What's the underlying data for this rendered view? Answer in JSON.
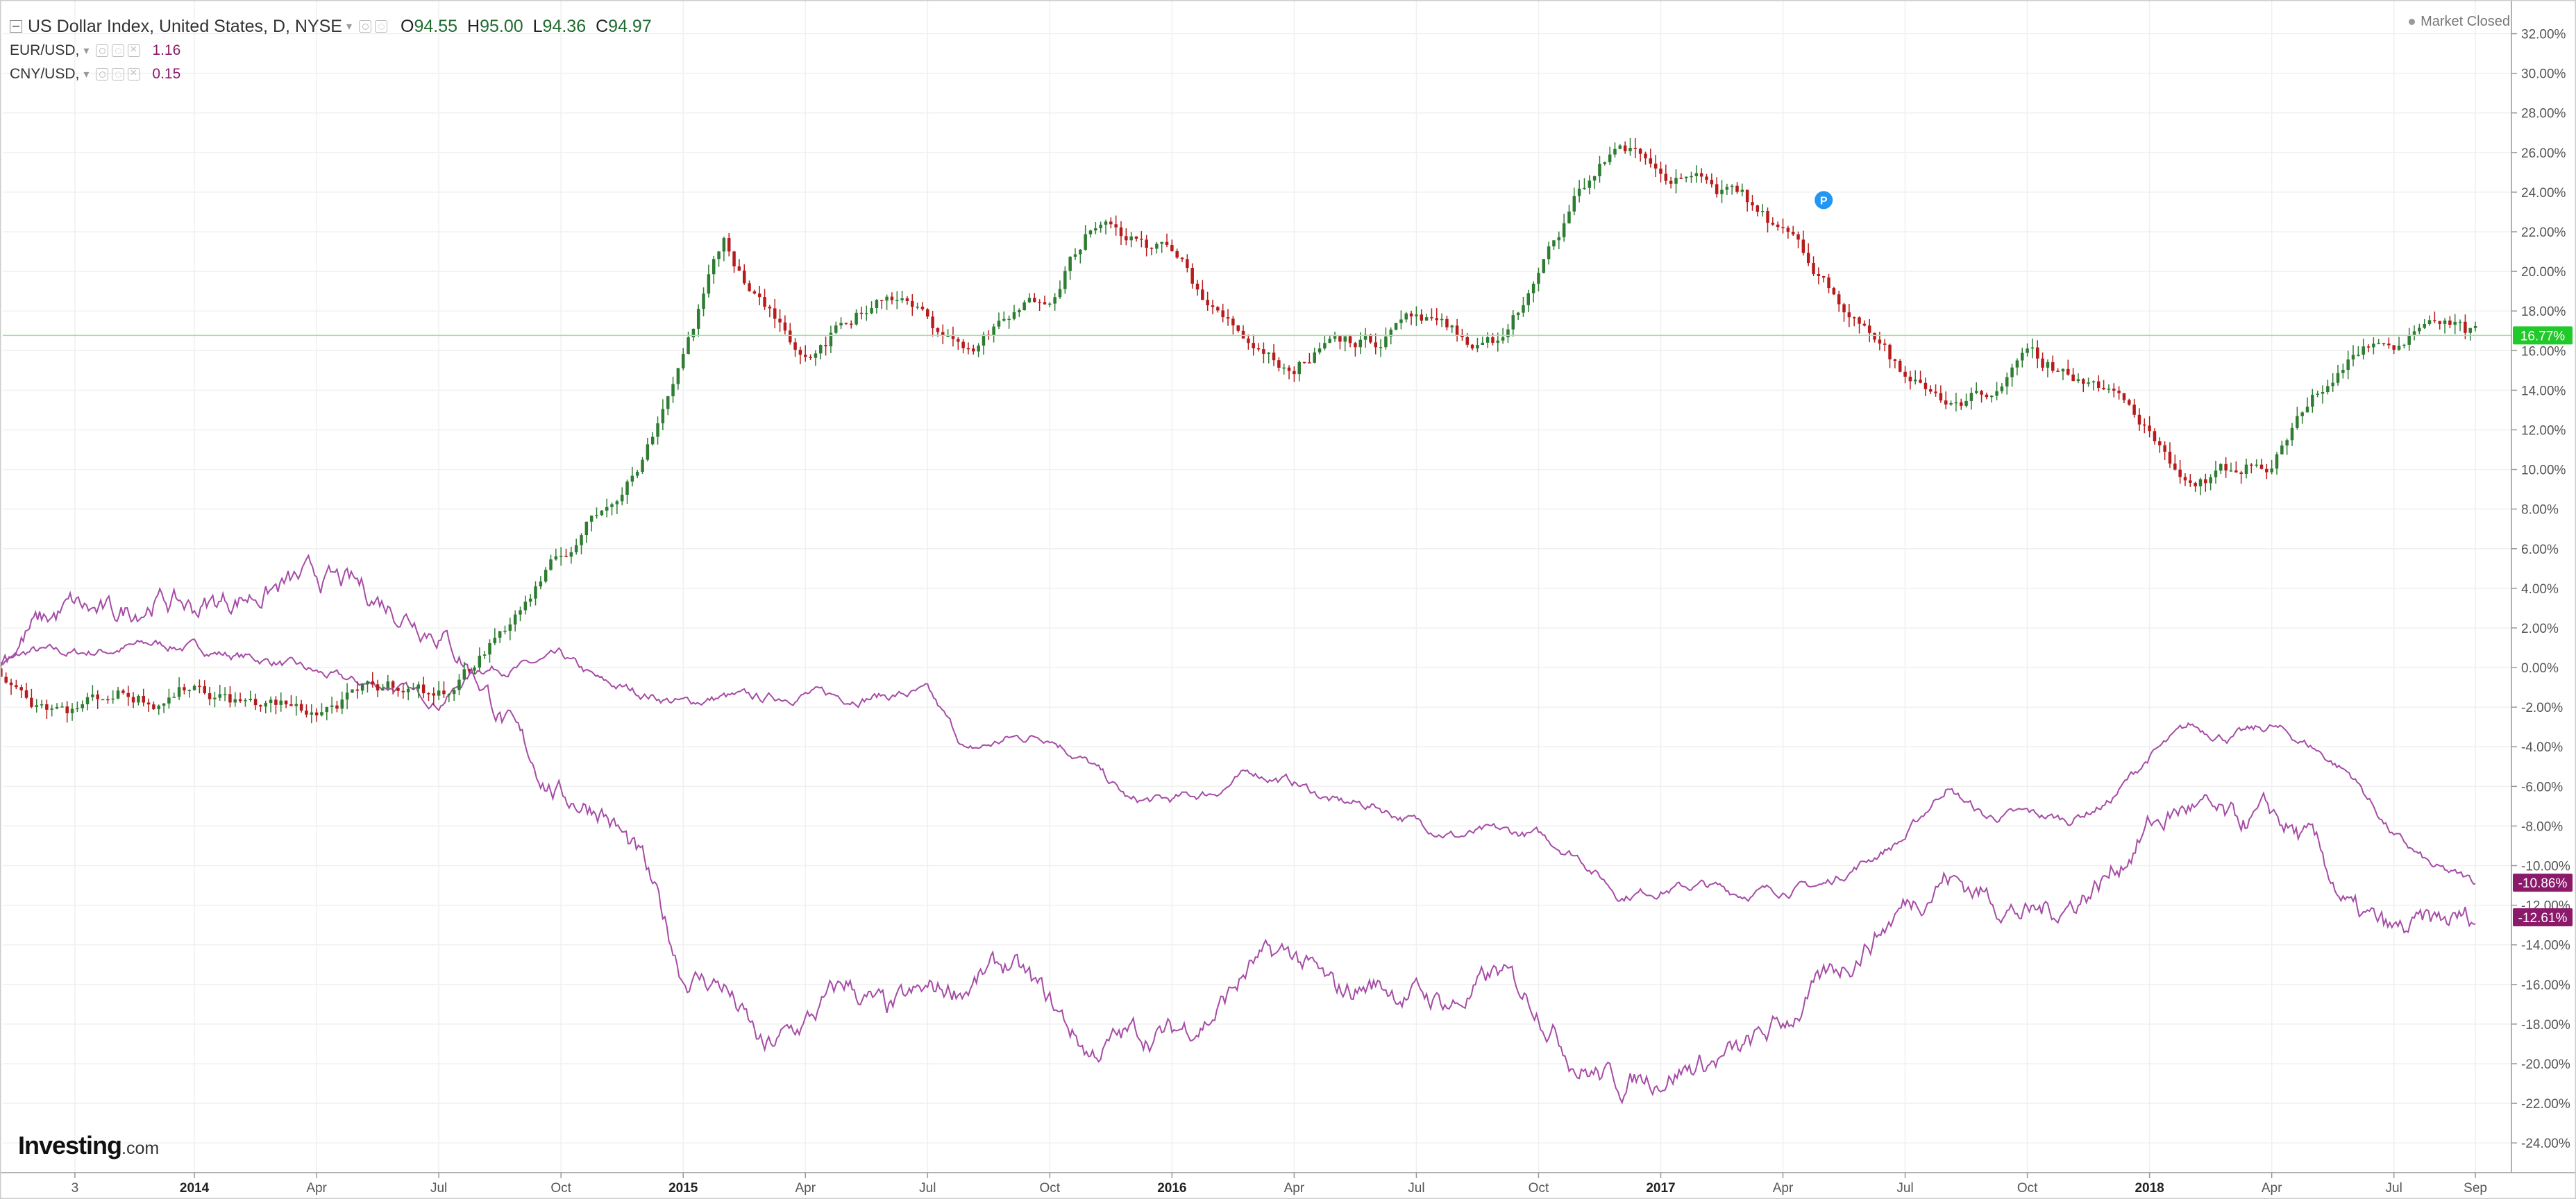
{
  "legend": {
    "main": {
      "title": "US Dollar Index, United States, D, NYSE",
      "o_label": "O",
      "o": "94.55",
      "h_label": "H",
      "h": "95.00",
      "l_label": "L",
      "l": "94.36",
      "c_label": "C",
      "c": "94.97"
    },
    "comparisons": [
      {
        "symbol": "EUR/USD,",
        "value": "1.16"
      },
      {
        "symbol": "CNY/USD,",
        "value": "0.15"
      }
    ]
  },
  "market_status": "Market Closed",
  "logo": {
    "brand": "Investing",
    "domain": ".com"
  },
  "colors": {
    "up": "#2e7d32",
    "down": "#b71c1c",
    "compare": "#a64ca6",
    "price_line": "#9ee39e",
    "price_badge": "#22c92a",
    "compare_badge": "#8b1a6b",
    "grid": "#f0f0f0"
  },
  "chart_data": {
    "type": "line",
    "title": "US Dollar Index, United States, D, NYSE",
    "xlabel": "",
    "ylabel": "",
    "y_unit": "% change",
    "ylim": [
      -25.5,
      33
    ],
    "y_ticks": [
      "32.00%",
      "30.00%",
      "28.00%",
      "26.00%",
      "24.00%",
      "22.00%",
      "20.00%",
      "18.00%",
      "16.00%",
      "14.00%",
      "12.00%",
      "10.00%",
      "8.00%",
      "6.00%",
      "4.00%",
      "2.00%",
      "0.00%",
      "-2.00%",
      "-4.00%",
      "-6.00%",
      "-8.00%",
      "-10.00%",
      "-12.00%",
      "-14.00%",
      "-16.00%",
      "-18.00%",
      "-20.00%",
      "-22.00%",
      "-24.00%"
    ],
    "x_ticks": [
      "3",
      "2014",
      "Apr",
      "Jul",
      "Oct",
      "2015",
      "Apr",
      "Jul",
      "Oct",
      "2016",
      "Apr",
      "Jul",
      "Oct",
      "2017",
      "Apr",
      "Jul",
      "Oct",
      "2018",
      "Apr",
      "Jul",
      "Sep"
    ],
    "x": [
      "2013-08",
      "2013-09",
      "2013-10",
      "2013-11",
      "2013-12",
      "2014-01",
      "2014-02",
      "2014-03",
      "2014-04",
      "2014-05",
      "2014-06",
      "2014-07",
      "2014-08",
      "2014-09",
      "2014-10",
      "2014-11",
      "2014-12",
      "2015-01",
      "2015-02",
      "2015-03",
      "2015-04",
      "2015-05",
      "2015-06",
      "2015-07",
      "2015-08",
      "2015-09",
      "2015-10",
      "2015-11",
      "2015-12",
      "2016-01",
      "2016-02",
      "2016-03",
      "2016-04",
      "2016-05",
      "2016-06",
      "2016-07",
      "2016-08",
      "2016-09",
      "2016-10",
      "2016-11",
      "2016-12",
      "2017-01",
      "2017-02",
      "2017-03",
      "2017-04",
      "2017-05",
      "2017-06",
      "2017-07",
      "2017-08",
      "2017-09",
      "2017-10",
      "2017-11",
      "2017-12",
      "2018-01",
      "2018-02",
      "2018-03",
      "2018-04",
      "2018-05",
      "2018-06",
      "2018-07",
      "2018-08",
      "2018-09"
    ],
    "series": [
      {
        "name": "US Dollar Index",
        "values": [
          0.2,
          -1.5,
          -2.0,
          -1.2,
          -1.5,
          -0.8,
          -1.6,
          -2.0,
          -2.2,
          -1.5,
          -0.8,
          -1.4,
          0.5,
          3.0,
          5.5,
          8.0,
          10.5,
          16.0,
          21.5,
          18.0,
          16.0,
          17.5,
          19.0,
          17.5,
          16.0,
          17.5,
          19.0,
          22.5,
          21.5,
          21.0,
          18.0,
          16.5,
          15.0,
          17.0,
          16.5,
          17.5,
          16.5,
          16.5,
          19.5,
          24.0,
          26.5,
          25.0,
          24.5,
          23.5,
          22.0,
          19.5,
          17.5,
          14.5,
          13.5,
          14.0,
          15.5,
          15.0,
          14.0,
          12.0,
          9.5,
          10.0,
          10.5,
          13.5,
          16.0,
          16.5,
          18.0,
          16.8
        ]
      },
      {
        "name": "EUR/USD",
        "values": [
          0.0,
          0.8,
          0.7,
          0.9,
          1.2,
          1.0,
          0.6,
          0.3,
          -0.3,
          -0.8,
          -1.0,
          -1.8,
          0.0,
          0.0,
          0.5,
          -0.8,
          -1.3,
          -1.8,
          -1.5,
          -1.6,
          -1.3,
          -1.5,
          -1.4,
          -1.3,
          -4.3,
          -3.6,
          -3.4,
          -4.9,
          -6.8,
          -6.7,
          -6.3,
          -5.3,
          -5.8,
          -6.8,
          -7.0,
          -7.8,
          -8.5,
          -8.3,
          -8.5,
          -9.5,
          -11.5,
          -11.2,
          -11.0,
          -11.4,
          -11.2,
          -11.0,
          -9.8,
          -8.6,
          -6.0,
          -7.6,
          -7.4,
          -7.7,
          -6.8,
          -4.5,
          -3.0,
          -3.5,
          -3.0,
          -4.0,
          -5.5,
          -8.5,
          -10.2,
          -10.86
        ]
      },
      {
        "name": "CNY/USD",
        "values": [
          0.0,
          2.0,
          3.0,
          2.5,
          3.5,
          3.0,
          3.5,
          4.0,
          4.5,
          4.0,
          3.0,
          2.0,
          -0.5,
          -4.0,
          -6.5,
          -7.0,
          -10.0,
          -15.5,
          -16.0,
          -19.5,
          -18.0,
          -16.0,
          -17.5,
          -16.5,
          -16.0,
          -15.0,
          -17.0,
          -19.5,
          -18.5,
          -18.5,
          -17.5,
          -15.0,
          -14.5,
          -16.5,
          -16.0,
          -16.5,
          -17.0,
          -15.5,
          -17.0,
          -20.0,
          -21.0,
          -20.5,
          -20.0,
          -19.5,
          -18.0,
          -16.0,
          -14.0,
          -12.0,
          -10.5,
          -11.5,
          -12.5,
          -12.0,
          -10.5,
          -8.0,
          -7.0,
          -8.0,
          -7.5,
          -9.0,
          -12.5,
          -13.5,
          -13.0,
          -12.61
        ]
      }
    ],
    "current_value_labels": {
      "US Dollar Index": "16.77%",
      "EUR/USD": "-10.86%",
      "CNY/USD": "-12.61%"
    },
    "marker": {
      "label": "P",
      "x": "2017-05",
      "y": 23.6
    },
    "grid": true,
    "legend": "top-left"
  }
}
